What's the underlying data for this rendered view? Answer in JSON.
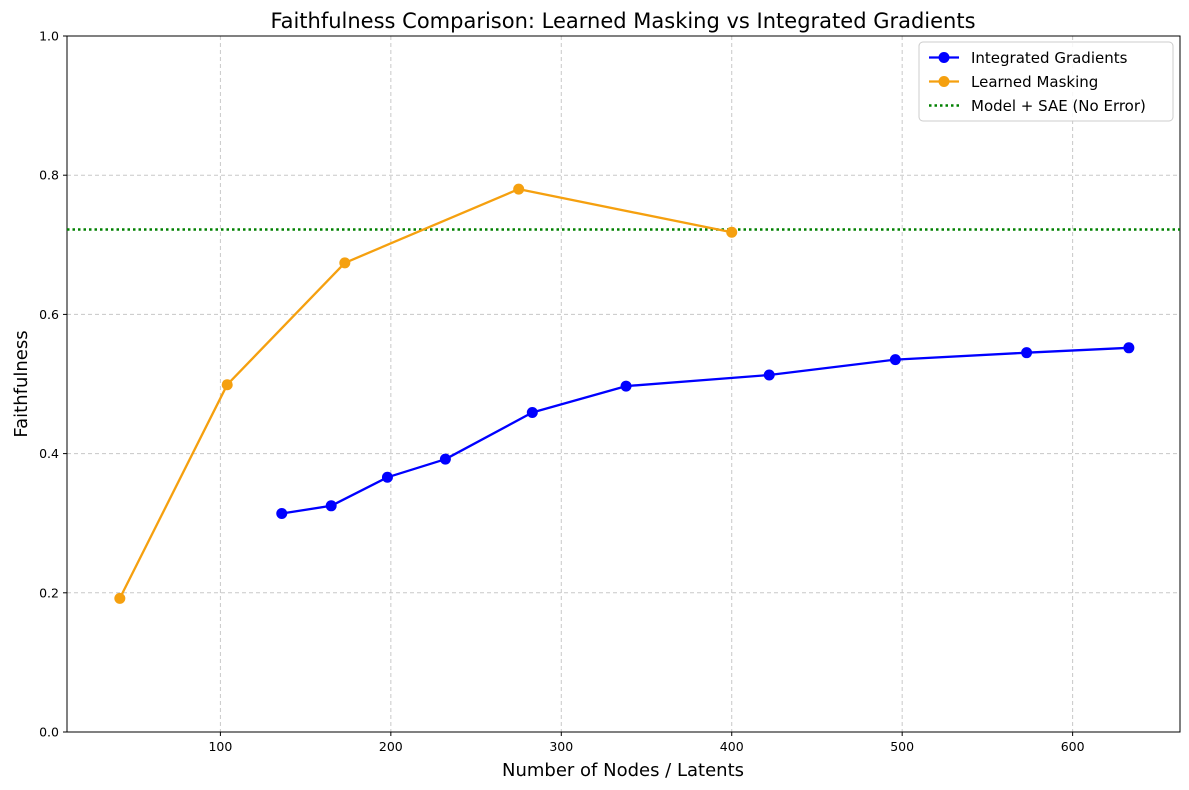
{
  "chart_data": {
    "type": "line",
    "title": "Faithfulness Comparison: Learned Masking vs Integrated Gradients",
    "xlabel": "Number of Nodes / Latents",
    "ylabel": "Faithfulness",
    "xlim": [
      10,
      663
    ],
    "ylim": [
      0.0,
      1.0
    ],
    "xticks": [
      100,
      200,
      300,
      400,
      500,
      600
    ],
    "yticks": [
      0.0,
      0.2,
      0.4,
      0.6,
      0.8,
      1.0
    ],
    "xtick_labels": [
      "100",
      "200",
      "300",
      "400",
      "500",
      "600"
    ],
    "ytick_labels": [
      "0.0",
      "0.2",
      "0.4",
      "0.6",
      "0.8",
      "1.0"
    ],
    "grid": true,
    "legend_position": "top-right",
    "series": [
      {
        "name": "Integrated Gradients",
        "color": "#0000ff",
        "marker": "circle",
        "x": [
          136,
          165,
          198,
          232,
          283,
          338,
          422,
          496,
          573,
          633
        ],
        "y": [
          0.314,
          0.325,
          0.366,
          0.392,
          0.459,
          0.497,
          0.513,
          0.535,
          0.545,
          0.552
        ]
      },
      {
        "name": "Learned Masking",
        "color": "#f5a00f",
        "marker": "circle",
        "x": [
          41,
          104,
          173,
          275,
          400
        ],
        "y": [
          0.192,
          0.499,
          0.674,
          0.78,
          0.718
        ]
      }
    ],
    "reference_lines": [
      {
        "name": "Model + SAE (No Error)",
        "color": "#008000",
        "style": "dotted",
        "y": 0.722
      }
    ]
  }
}
